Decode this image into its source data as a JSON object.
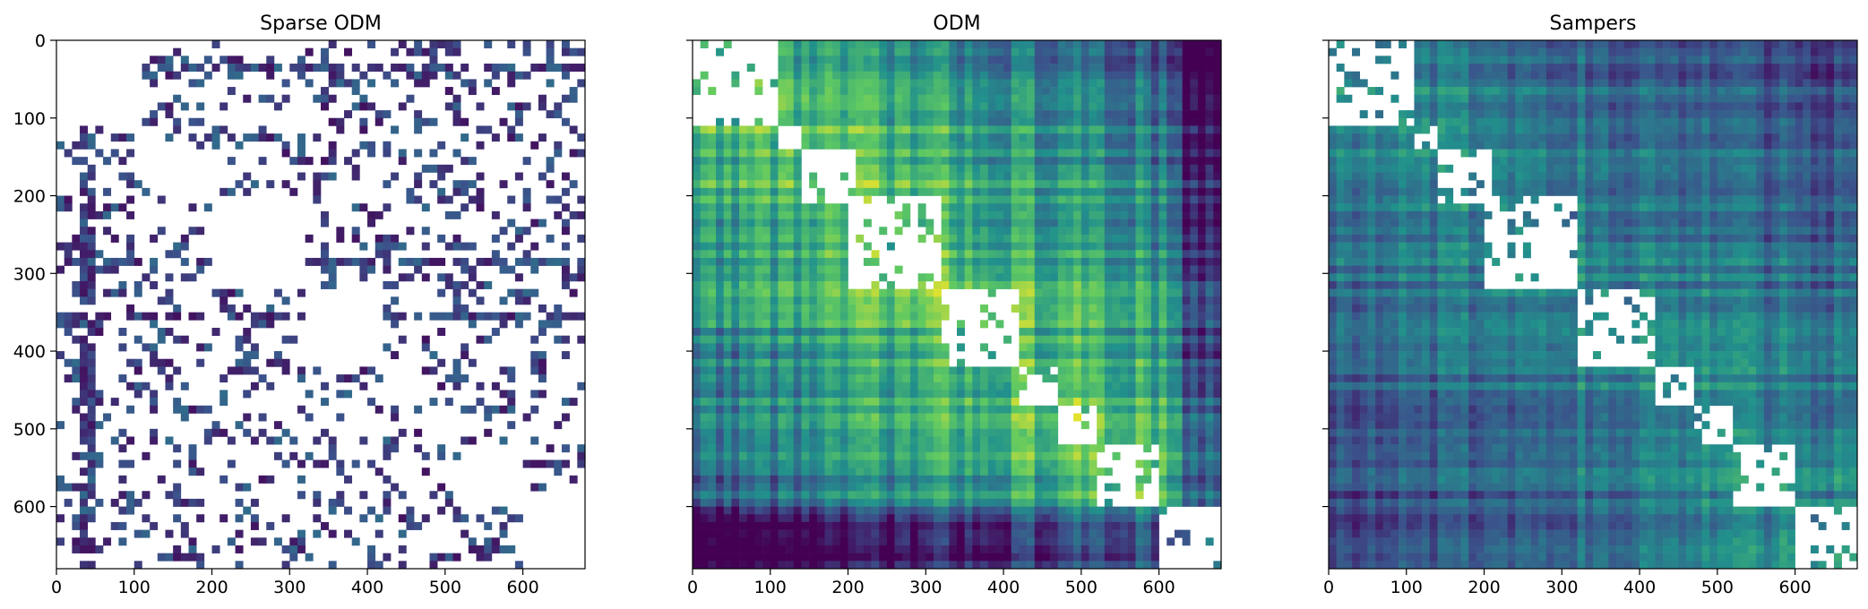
{
  "chart_data": [
    {
      "type": "heatmap",
      "title": "Sparse ODM",
      "xlabel": "",
      "ylabel": "",
      "xlim": [
        0,
        680
      ],
      "ylim": [
        680,
        0
      ],
      "x_ticks": [
        "0",
        "100",
        "200",
        "300",
        "400",
        "500",
        "600"
      ],
      "y_ticks": [
        "0",
        "100",
        "200",
        "300",
        "400",
        "500",
        "600"
      ],
      "y_tick_labels_visible": true,
      "colormap": "viridis",
      "style": "sparse"
    },
    {
      "type": "heatmap",
      "title": "ODM",
      "xlabel": "",
      "ylabel": "",
      "xlim": [
        0,
        680
      ],
      "ylim": [
        680,
        0
      ],
      "x_ticks": [
        "0",
        "100",
        "200",
        "300",
        "400",
        "500",
        "600"
      ],
      "y_ticks": [
        "0",
        "100",
        "200",
        "300",
        "400",
        "500",
        "600"
      ],
      "y_tick_labels_visible": false,
      "colormap": "viridis",
      "style": "dense-bright"
    },
    {
      "type": "heatmap",
      "title": "Sampers",
      "xlabel": "",
      "ylabel": "",
      "xlim": [
        0,
        680
      ],
      "ylim": [
        680,
        0
      ],
      "x_ticks": [
        "0",
        "100",
        "200",
        "300",
        "400",
        "500",
        "600"
      ],
      "y_ticks": [
        "0",
        "100",
        "200",
        "300",
        "400",
        "500",
        "600"
      ],
      "y_tick_labels_visible": false,
      "colormap": "viridis",
      "style": "dense-dark"
    }
  ],
  "diagonal_blocks": [
    {
      "start": 0,
      "end": 110
    },
    {
      "start": 110,
      "end": 140
    },
    {
      "start": 140,
      "end": 205
    },
    {
      "start": 205,
      "end": 320
    },
    {
      "start": 320,
      "end": 420
    },
    {
      "start": 420,
      "end": 470
    },
    {
      "start": 470,
      "end": 520
    },
    {
      "start": 520,
      "end": 600
    },
    {
      "start": 600,
      "end": 680
    }
  ],
  "colors": {
    "sparse_dot": "#3b2f7a",
    "viridis_dark": "#3b528b",
    "viridis_mid": "#21918c",
    "viridis_light": "#5ec962",
    "viridis_bright": "#c8e020"
  }
}
